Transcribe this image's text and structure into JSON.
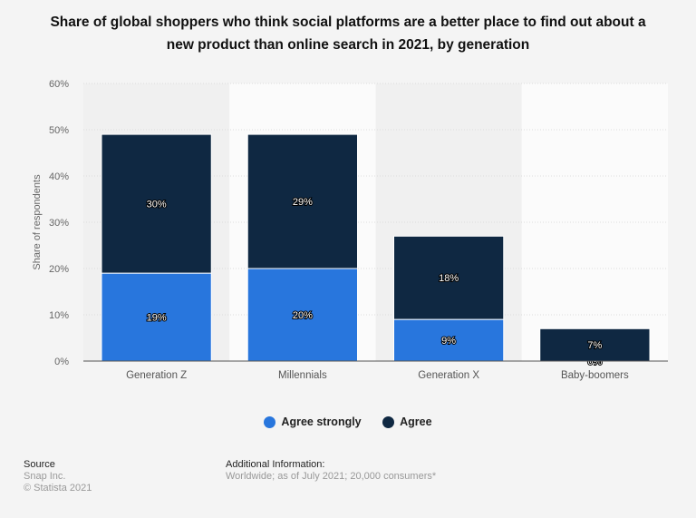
{
  "chart_data": {
    "type": "bar",
    "stacked": true,
    "title": "Share of global shoppers who think social platforms are a better place to find out about a new product than online search in 2021, by generation",
    "ylabel": "Share of respondents",
    "xlabel": "",
    "ylim": [
      0,
      60
    ],
    "yticks": [
      "0%",
      "10%",
      "20%",
      "30%",
      "40%",
      "50%",
      "60%"
    ],
    "grid": true,
    "legend_position": "bottom",
    "categories": [
      "Generation Z",
      "Millennials",
      "Generation X",
      "Baby-boomers"
    ],
    "series": [
      {
        "name": "Agree strongly",
        "values": [
          19,
          20,
          9,
          0
        ],
        "color": "#2876dd"
      },
      {
        "name": "Agree",
        "values": [
          30,
          29,
          18,
          7
        ],
        "color": "#0f2842"
      }
    ]
  },
  "footer": {
    "source_heading": "Source",
    "source_lines": [
      "Snap Inc.",
      "© Statista 2021"
    ],
    "info_heading": "Additional Information:",
    "info_text": "Worldwide; as of July 2021; 20,000 consumers*"
  }
}
